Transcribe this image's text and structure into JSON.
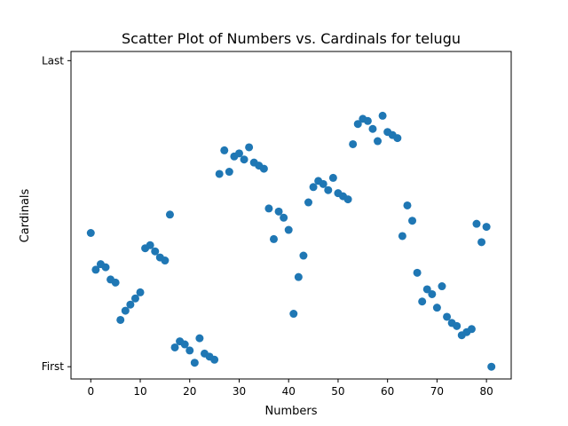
{
  "chart_data": {
    "type": "scatter",
    "title": "Scatter Plot of Numbers vs. Cardinals for telugu",
    "xlabel": "Numbers",
    "ylabel": "Cardinals",
    "xlim": [
      -4,
      85
    ],
    "ylim": [
      -0.04,
      1.03
    ],
    "x_ticks": [
      0,
      10,
      20,
      30,
      40,
      50,
      60,
      70,
      80
    ],
    "x_tick_labels": [
      "0",
      "10",
      "20",
      "30",
      "40",
      "50",
      "60",
      "70",
      "80"
    ],
    "y_ticks": [
      0,
      1
    ],
    "y_tick_labels": [
      "First",
      "Last"
    ],
    "grid": false,
    "marker_color": "#1f77b4",
    "series": [
      {
        "x": [
          0,
          1,
          2,
          3,
          4,
          5,
          6,
          7,
          8,
          9,
          10,
          11,
          12,
          13,
          14,
          15,
          16,
          17,
          18,
          19,
          20,
          21,
          22,
          23,
          24,
          25,
          26,
          27,
          28,
          29,
          30,
          31,
          32,
          33,
          34,
          35,
          36,
          37,
          38,
          39,
          40,
          41,
          42,
          43,
          44,
          45,
          46,
          47,
          48,
          49,
          50,
          51,
          52,
          53,
          54,
          55,
          56,
          57,
          58,
          59,
          60,
          61,
          62,
          63,
          64,
          65,
          66,
          67,
          68,
          69,
          70,
          71,
          72,
          73,
          74,
          75,
          76,
          77,
          78,
          79,
          80,
          81
        ],
        "y": [
          0.437,
          0.317,
          0.335,
          0.325,
          0.285,
          0.275,
          0.153,
          0.183,
          0.203,
          0.223,
          0.243,
          0.387,
          0.397,
          0.377,
          0.357,
          0.347,
          0.497,
          0.063,
          0.083,
          0.073,
          0.053,
          0.013,
          0.093,
          0.043,
          0.033,
          0.023,
          0.63,
          0.707,
          0.637,
          0.687,
          0.697,
          0.677,
          0.717,
          0.667,
          0.657,
          0.647,
          0.517,
          0.417,
          0.507,
          0.487,
          0.447,
          0.173,
          0.293,
          0.363,
          0.537,
          0.587,
          0.607,
          0.597,
          0.577,
          0.617,
          0.567,
          0.557,
          0.547,
          0.727,
          0.793,
          0.81,
          0.803,
          0.777,
          0.737,
          0.82,
          0.767,
          0.757,
          0.747,
          0.427,
          0.527,
          0.477,
          0.307,
          0.213,
          0.253,
          0.237,
          0.193,
          0.263,
          0.163,
          0.143,
          0.133,
          0.103,
          0.113,
          0.123,
          0.467,
          0.407,
          0.457,
          0.0
        ]
      }
    ]
  }
}
